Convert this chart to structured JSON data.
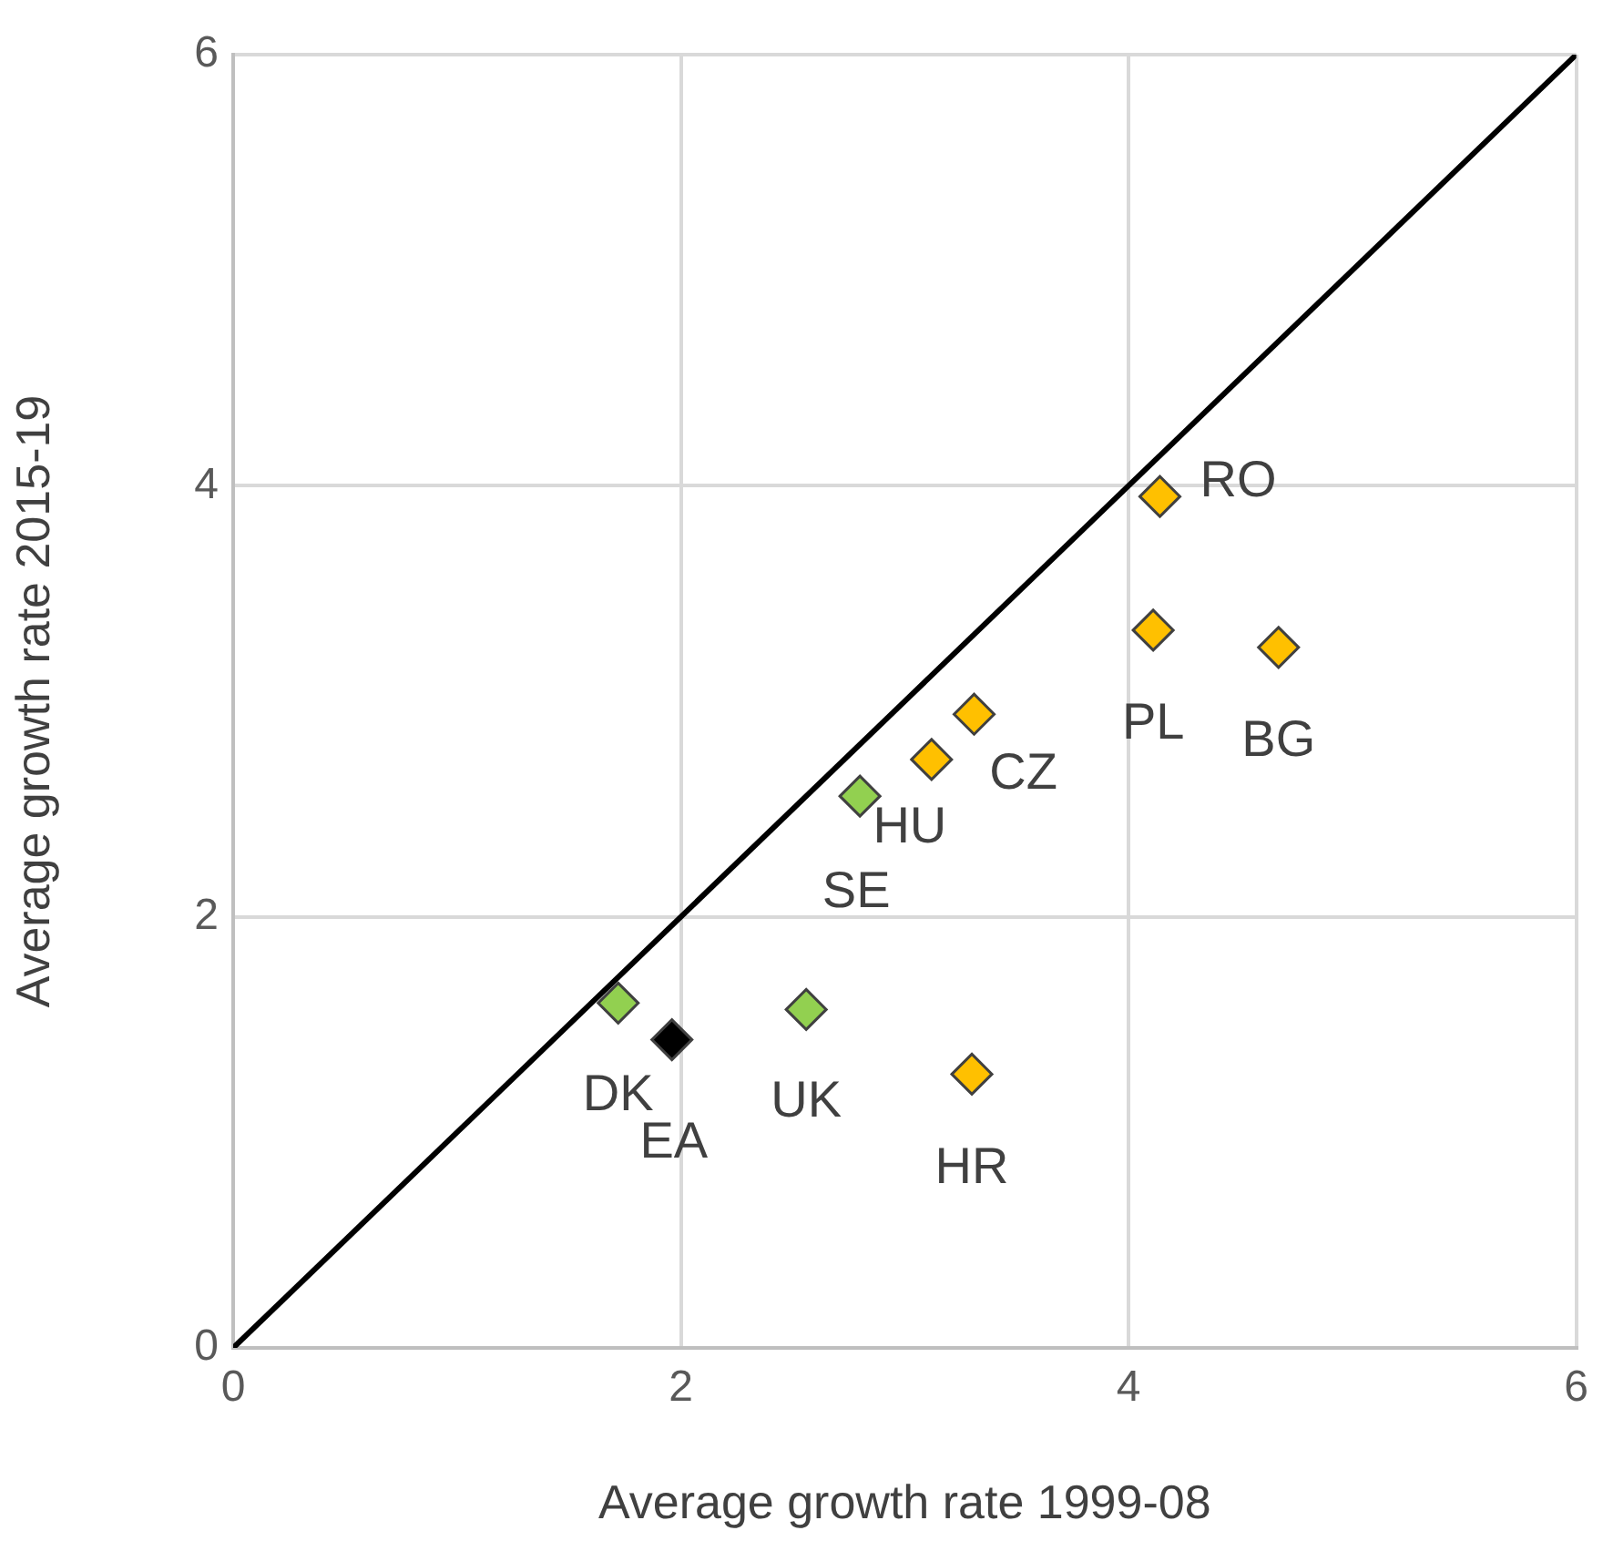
{
  "chart_data": {
    "type": "scatter",
    "xlabel": "Average growth rate 1999-08",
    "ylabel": "Average growth rate 2015-19",
    "xlim": [
      0,
      6
    ],
    "xticks": [
      0,
      2,
      4,
      6
    ],
    "ylim": [
      0,
      6
    ],
    "yticks": [
      0,
      2,
      4,
      6
    ],
    "grid": true,
    "legend": false,
    "marker": "diamond",
    "series": [
      {
        "type": "line",
        "color": "#000000",
        "x": [
          0,
          6
        ],
        "values": [
          0,
          6
        ],
        "marker": "none"
      },
      {
        "color": "#92d050",
        "x": [
          2.8,
          1.72,
          2.56
        ],
        "values": [
          2.56,
          1.6,
          1.57
        ]
      },
      {
        "color": "#ffc000",
        "x": [
          4.14,
          4.11,
          4.67,
          3.31,
          3.12,
          3.3
        ],
        "values": [
          3.95,
          3.33,
          3.25,
          2.94,
          2.73,
          1.27
        ]
      },
      {
        "color": "#000000",
        "x": [
          1.96
        ],
        "values": [
          1.43
        ]
      }
    ],
    "annotations": [
      {
        "text": "RO",
        "x": 4.14,
        "y": 3.95
      },
      {
        "text": "PL",
        "x": 4.11,
        "y": 3.33
      },
      {
        "text": "BG",
        "x": 4.67,
        "y": 3.25
      },
      {
        "text": "CZ",
        "x": 3.31,
        "y": 2.94
      },
      {
        "text": "HU",
        "x": 3.12,
        "y": 2.73
      },
      {
        "text": "SE",
        "x": 2.8,
        "y": 2.56
      },
      {
        "text": "DK",
        "x": 1.72,
        "y": 1.6
      },
      {
        "text": "EA",
        "x": 1.96,
        "y": 1.43
      },
      {
        "text": "UK",
        "x": 2.56,
        "y": 1.57
      },
      {
        "text": "HR",
        "x": 3.3,
        "y": 1.27
      }
    ]
  }
}
